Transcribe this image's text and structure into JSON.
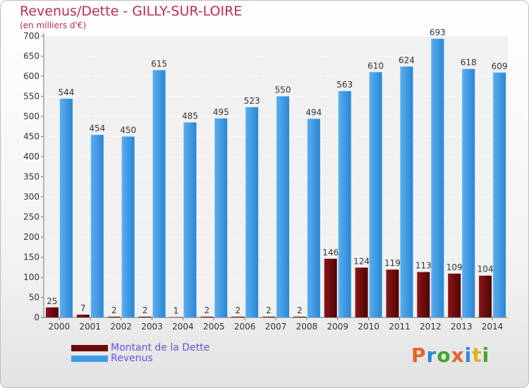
{
  "header": {
    "title": "Revenus/Dette - GILLY-SUR-LOIRE",
    "subtitle": "(en milliers d'€)"
  },
  "legend": [
    {
      "label": "Montant de la Dette",
      "color": "#6b0a0a"
    },
    {
      "label": "Revenus",
      "color": "#3d9ce6"
    }
  ],
  "logo": {
    "letters": [
      "P",
      "r",
      "o",
      "x",
      "i",
      "t",
      "i"
    ],
    "colors": [
      "#e6622b",
      "#2f86d8",
      "#44a52d",
      "#e6622b",
      "#2f86d8",
      "#d9b31f",
      "#44a52d"
    ]
  },
  "chart_data": {
    "type": "bar",
    "title": "Revenus/Dette - GILLY-SUR-LOIRE",
    "ylabel": "(en milliers d'€)",
    "categories": [
      "2000",
      "2001",
      "2002",
      "2003",
      "2004",
      "2005",
      "2006",
      "2007",
      "2008",
      "2009",
      "2010",
      "2011",
      "2012",
      "2013",
      "2014"
    ],
    "series": [
      {
        "name": "Montant de la Dette",
        "color": "#6b0a0a",
        "values": [
          25,
          7,
          2,
          2,
          1,
          2,
          2,
          2,
          2,
          146,
          124,
          119,
          113,
          109,
          104
        ]
      },
      {
        "name": "Revenus",
        "color": "#3d9ce6",
        "values": [
          544,
          454,
          450,
          615,
          485,
          495,
          523,
          550,
          494,
          563,
          610,
          624,
          693,
          618,
          609
        ]
      }
    ],
    "ylim": [
      0,
      700
    ],
    "yticks": [
      0,
      50,
      100,
      150,
      200,
      250,
      300,
      350,
      400,
      450,
      500,
      550,
      600,
      650,
      700
    ],
    "grid": true,
    "legend_position": "bottom-left"
  }
}
